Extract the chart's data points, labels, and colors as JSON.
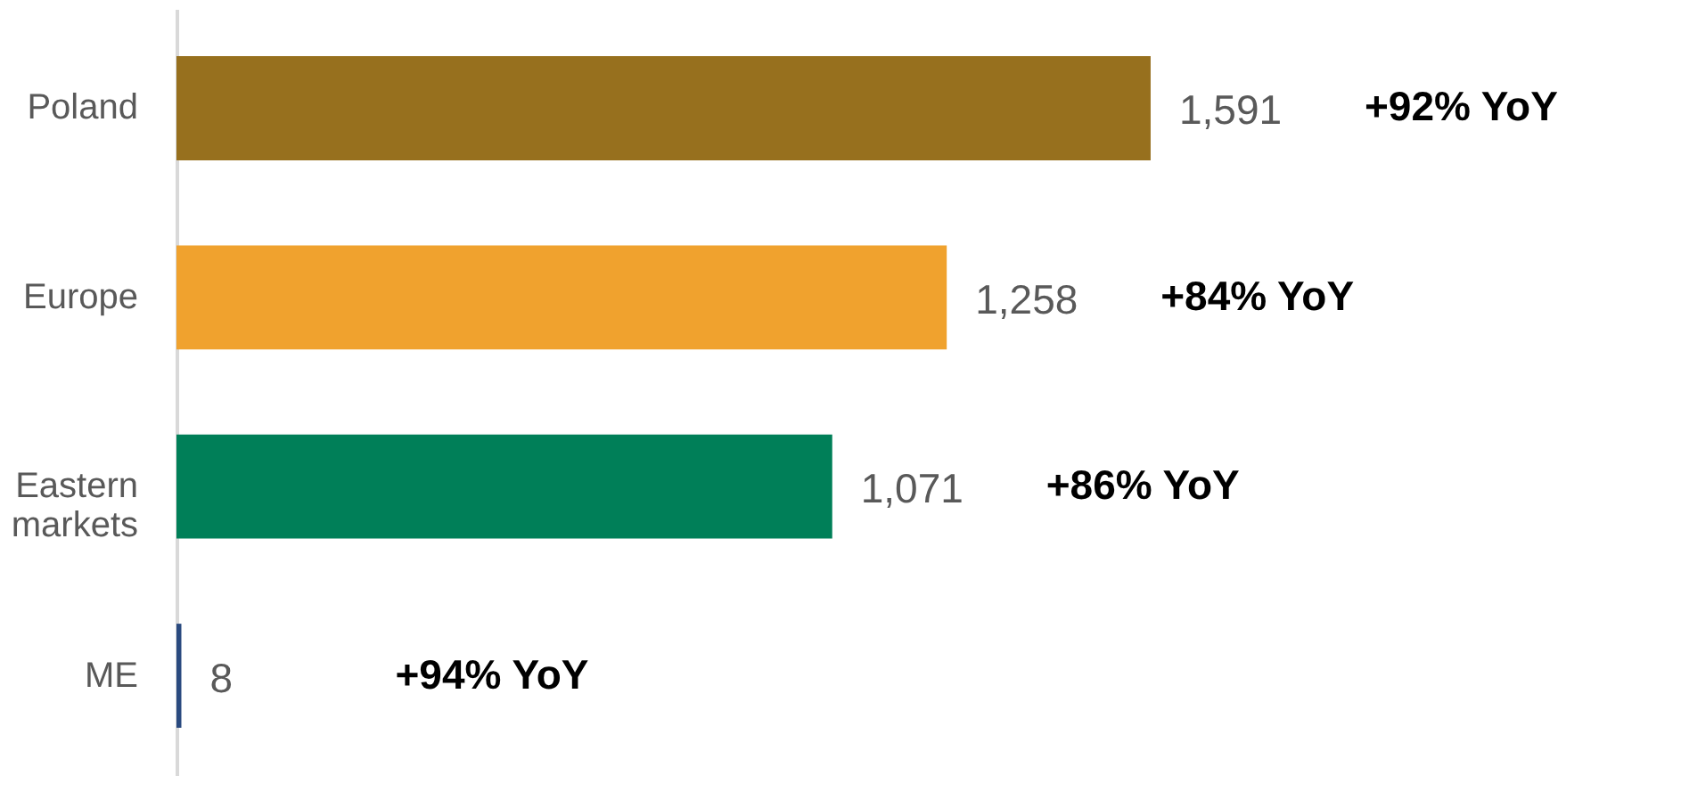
{
  "chart_data": {
    "type": "bar",
    "orientation": "horizontal",
    "categories": [
      "Poland",
      "Europe",
      "Eastern markets",
      "ME"
    ],
    "values": [
      1591,
      1258,
      1071,
      8
    ],
    "colors": [
      "#97701e",
      "#f0a22e",
      "#007f58",
      "#2a4a7f"
    ],
    "value_labels": [
      "1,591",
      "1,258",
      "1,071",
      "8"
    ],
    "xlim": [
      0,
      2300
    ],
    "tick_labels": "y",
    "annotations": [
      "+92% YoY",
      "+84% YoY",
      "+86% YoY",
      "+94% YoY"
    ]
  }
}
